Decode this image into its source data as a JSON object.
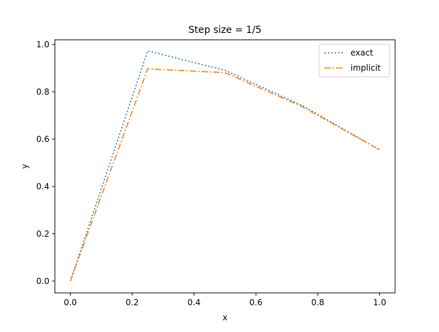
{
  "chart_data": {
    "type": "line",
    "title": "Step size = 1/5",
    "xlabel": "x",
    "ylabel": "y",
    "xlim": [
      -0.05,
      1.05
    ],
    "ylim": [
      -0.05,
      1.02
    ],
    "xticks": [
      0.0,
      0.2,
      0.4,
      0.6,
      0.8,
      1.0
    ],
    "xtick_labels": [
      "0.0",
      "0.2",
      "0.4",
      "0.6",
      "0.8",
      "1.0"
    ],
    "yticks": [
      0.0,
      0.2,
      0.4,
      0.6,
      0.8,
      1.0
    ],
    "ytick_labels": [
      "0.0",
      "0.2",
      "0.4",
      "0.6",
      "0.8",
      "1.0"
    ],
    "grid": false,
    "legend_position": "top-right",
    "series": [
      {
        "name": "exact",
        "color": "#1f77b4",
        "style": "dotted",
        "x": [
          0.0,
          0.25,
          0.5,
          0.75,
          1.0
        ],
        "y": [
          0.0,
          0.973,
          0.891,
          0.742,
          0.555
        ]
      },
      {
        "name": "implicit",
        "color": "#ff7f0e",
        "style": "dashdot",
        "x": [
          0.0,
          0.25,
          0.5,
          0.75,
          1.0
        ],
        "y": [
          0.0,
          0.897,
          0.881,
          0.737,
          0.555
        ]
      }
    ]
  }
}
